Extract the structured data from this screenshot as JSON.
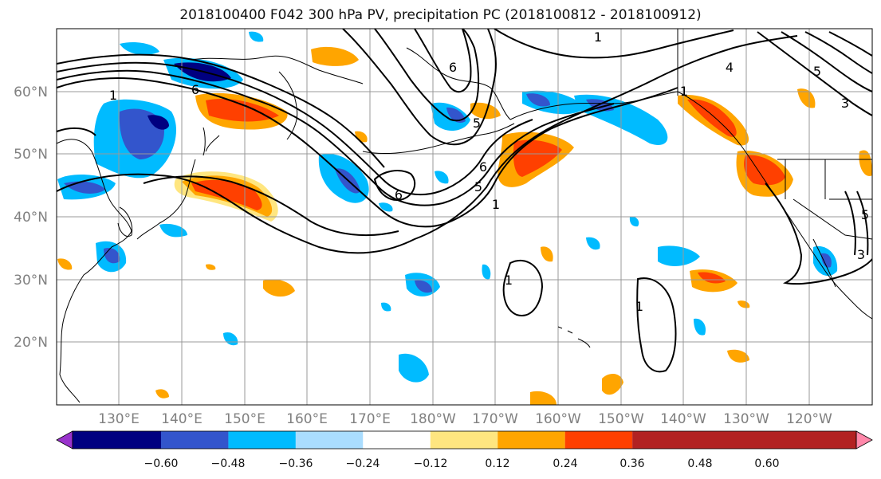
{
  "title": "2018100400 F042 300 hPa PV, precipitation PC (2018100812 - 2018100912)",
  "latitude_labels": [
    "60°N",
    "50°N",
    "40°N",
    "30°N",
    "20°N"
  ],
  "longitude_labels": [
    "130°E",
    "140°E",
    "150°E",
    "160°E",
    "170°E",
    "180°W",
    "170°W",
    "160°W",
    "150°W",
    "140°W",
    "130°W",
    "120°W"
  ],
  "colorbar": {
    "tick_labels": [
      "−0.60",
      "−0.48",
      "−0.36",
      "−0.24",
      "−0.12",
      "0.12",
      "0.24",
      "0.36",
      "0.48",
      "0.60"
    ],
    "colors": [
      "#9933cc",
      "#000080",
      "#3355cc",
      "#00bbff",
      "#aaddff",
      "#ffffff",
      "#ffe680",
      "#ffa500",
      "#ff4000",
      "#b22222",
      "#ff88aa"
    ]
  },
  "contour_labels": [
    "1",
    "6",
    "5",
    "6",
    "5",
    "1",
    "1",
    "1",
    "1",
    "1",
    "6",
    "6",
    "4",
    "5",
    "5",
    "3",
    "3"
  ],
  "field_colors": {
    "negative": [
      "#aaddff",
      "#00bbff",
      "#3355cc",
      "#000080"
    ],
    "positive": [
      "#ffe680",
      "#ffa500",
      "#ff4000"
    ]
  }
}
